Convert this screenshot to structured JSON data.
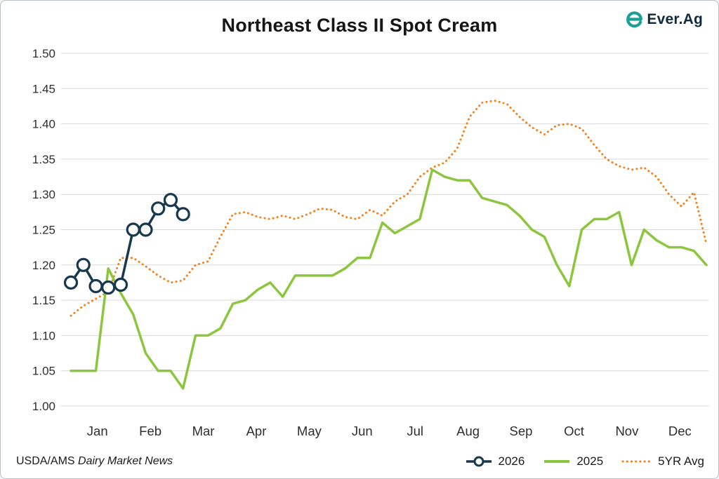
{
  "page": {
    "title": "Northeast Class II Spot Cream",
    "source_org": "USDA/AMS",
    "source_publication": "Dairy Market News"
  },
  "brand": {
    "icon": "ever-ag-e-icon",
    "text": "Ever.Ag"
  },
  "legend": {
    "items": [
      {
        "id": "y2026",
        "label": "2026"
      },
      {
        "id": "y2025",
        "label": "2025"
      },
      {
        "id": "avg5yr",
        "label": "5YR Avg"
      }
    ]
  },
  "chart_data": {
    "type": "line",
    "title": "Northeast Class II Spot Cream",
    "xlabel": "",
    "ylabel": "",
    "categories": [
      "Jan",
      "Feb",
      "Mar",
      "Apr",
      "May",
      "Jun",
      "Jul",
      "Aug",
      "Sep",
      "Oct",
      "Nov",
      "Dec"
    ],
    "x_unit": "week",
    "weeks": 52,
    "ylim": [
      1.0,
      1.5
    ],
    "ytick_step": 0.05,
    "grid": "horizontal",
    "legend_position": "bottom-right",
    "colors": {
      "grid": "#d9d9d9",
      "navy": "#17384d",
      "green": "#8cc63e",
      "orange": "#f58220"
    },
    "series": [
      {
        "id": "5yr-avg",
        "name": "5YR Avg",
        "color": "#f58220",
        "style": "dotted",
        "width": 3,
        "values": [
          1.128,
          1.142,
          1.152,
          1.162,
          1.21,
          1.21,
          1.198,
          1.185,
          1.175,
          1.178,
          1.2,
          1.205,
          1.24,
          1.272,
          1.275,
          1.268,
          1.265,
          1.27,
          1.265,
          1.272,
          1.28,
          1.278,
          1.268,
          1.265,
          1.278,
          1.27,
          1.29,
          1.3,
          1.325,
          1.338,
          1.345,
          1.365,
          1.41,
          1.43,
          1.433,
          1.428,
          1.41,
          1.395,
          1.385,
          1.398,
          1.4,
          1.393,
          1.37,
          1.35,
          1.34,
          1.335,
          1.338,
          1.325,
          1.3,
          1.283,
          1.303,
          1.23
        ]
      },
      {
        "id": "2025",
        "name": "2025",
        "color": "#8cc63e",
        "style": "solid",
        "width": 3.5,
        "values": [
          1.05,
          1.05,
          1.05,
          1.195,
          1.16,
          1.13,
          1.075,
          1.05,
          1.05,
          1.025,
          1.1,
          1.1,
          1.11,
          1.145,
          1.15,
          1.165,
          1.175,
          1.155,
          1.185,
          1.185,
          1.185,
          1.185,
          1.195,
          1.21,
          1.21,
          1.26,
          1.245,
          1.255,
          1.265,
          1.335,
          1.325,
          1.32,
          1.32,
          1.295,
          1.29,
          1.285,
          1.27,
          1.25,
          1.24,
          1.2,
          1.17,
          1.25,
          1.265,
          1.265,
          1.275,
          1.2,
          1.25,
          1.235,
          1.225,
          1.225,
          1.22,
          1.2
        ]
      },
      {
        "id": "2026",
        "name": "2026",
        "color": "#17384d",
        "style": "solid",
        "width": 3.5,
        "marker": "circle",
        "values": [
          1.175,
          1.2,
          1.17,
          1.168,
          1.172,
          1.25,
          1.25,
          1.28,
          1.292,
          1.272
        ]
      }
    ]
  }
}
